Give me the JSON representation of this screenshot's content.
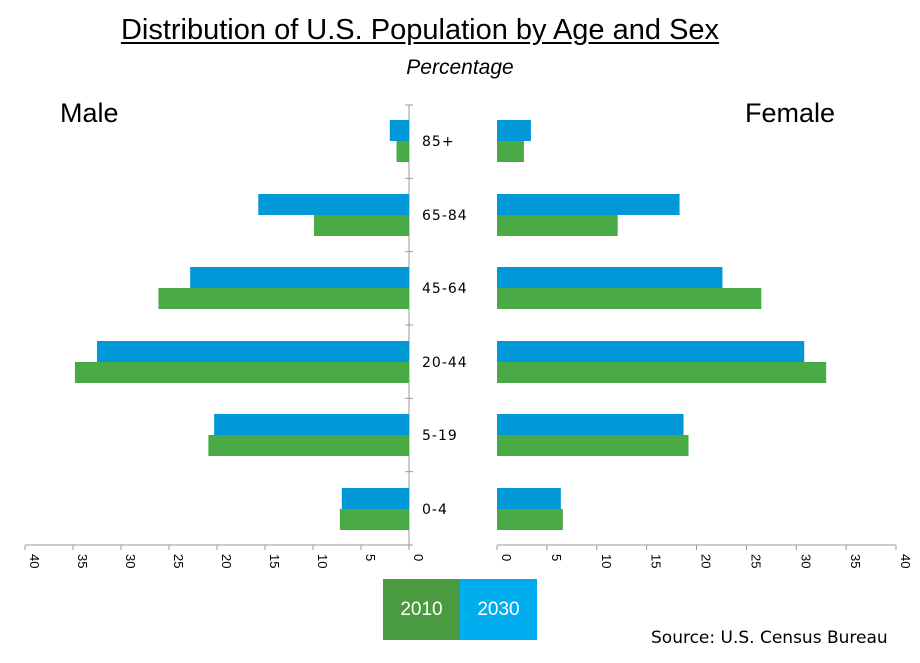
{
  "chart_data": {
    "type": "bar",
    "title": "Distribution  of U.S. Population  by Age and Sex",
    "subtitle": "Percentage",
    "left_label": "Male",
    "right_label": "Female",
    "categories": [
      "85+",
      "65-84",
      "45-64",
      "20-44",
      "5-19",
      "0-4"
    ],
    "series": [
      {
        "name": "2010",
        "color": "#4aaa46",
        "male": [
          1.3,
          9.9,
          26.1,
          34.8,
          20.9,
          7.2
        ],
        "female": [
          2.7,
          12.1,
          26.5,
          33.0,
          19.2,
          6.6
        ]
      },
      {
        "name": "2030",
        "color": "#0098d6",
        "male": [
          2.0,
          15.7,
          22.8,
          32.5,
          20.3,
          7.0
        ],
        "female": [
          3.4,
          18.3,
          22.6,
          30.8,
          18.7,
          6.4
        ]
      }
    ],
    "xlim": [
      0,
      40
    ],
    "xticks": [
      "0",
      "5",
      "10",
      "15",
      "20",
      "25",
      "30",
      "35",
      "40"
    ],
    "legend_placement": "bottom-center",
    "grid": false
  },
  "legend": {
    "items": [
      {
        "label": "2010",
        "color": "#4a9a3f"
      },
      {
        "label": "2030",
        "color": "#00aeef"
      }
    ]
  },
  "source": "Source: U.S. Census Bureau"
}
